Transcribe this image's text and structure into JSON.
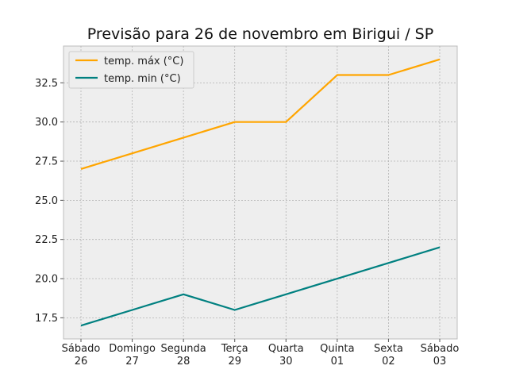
{
  "chart_data": {
    "type": "line",
    "title": "Previsão para 26 de novembro em Birigui / SP",
    "xlabel": "",
    "ylabel": "",
    "categories": [
      [
        "Sábado",
        "26"
      ],
      [
        "Domingo",
        "27"
      ],
      [
        "Segunda",
        "28"
      ],
      [
        "Terça",
        "29"
      ],
      [
        "Quarta",
        "30"
      ],
      [
        "Quinta",
        "01"
      ],
      [
        "Sexta",
        "02"
      ],
      [
        "Sábado",
        "03"
      ]
    ],
    "series": [
      {
        "name": "temp. máx (°C)",
        "color": "#FFA500",
        "values": [
          27,
          28,
          29,
          30,
          30,
          33,
          33,
          34
        ]
      },
      {
        "name": "temp. min (°C)",
        "color": "#008080",
        "values": [
          17,
          18,
          19,
          18,
          19,
          20,
          21,
          22
        ]
      }
    ],
    "ylim": [
      16.15,
      34.85
    ],
    "yticks": [
      "17.5",
      "20.0",
      "22.5",
      "25.0",
      "27.5",
      "30.0",
      "32.5"
    ],
    "grid": true,
    "legend_position": "top-left",
    "background_color": "#EEEEEE"
  }
}
